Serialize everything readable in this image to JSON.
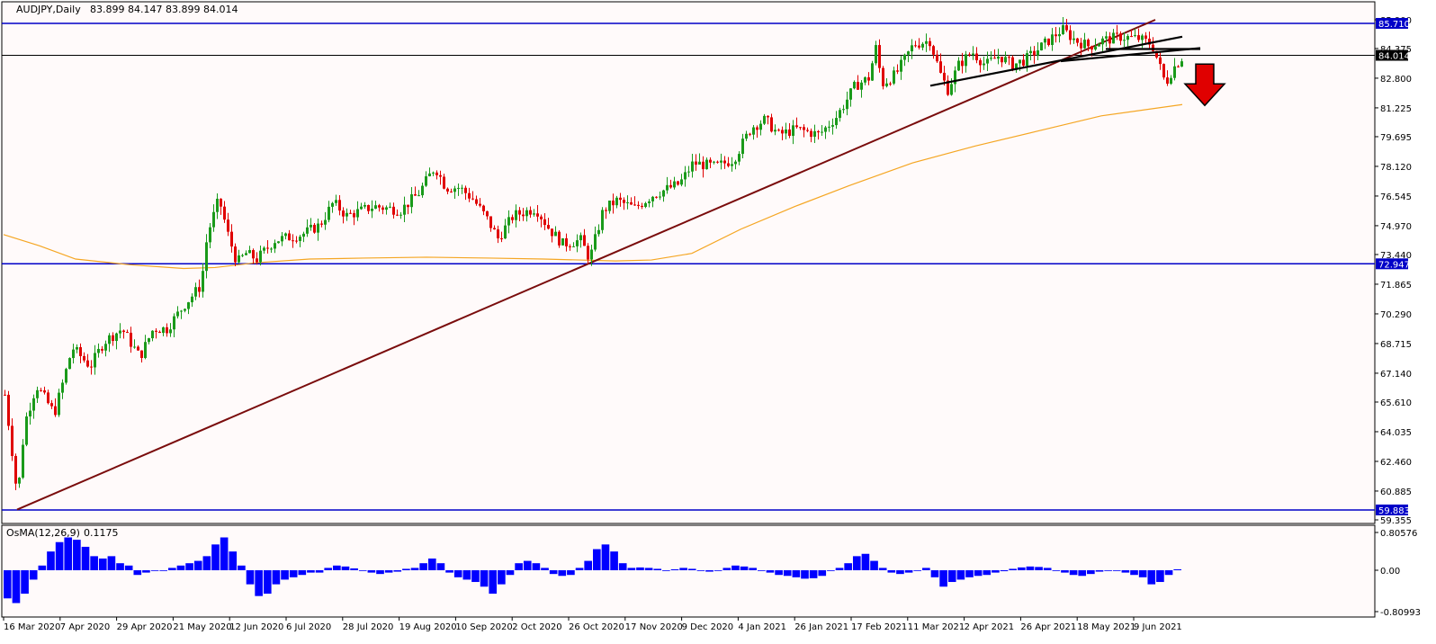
{
  "header": {
    "symbol_label": "AUDJPY,Daily",
    "ohlc": "83.899 84.147 83.899 84.014"
  },
  "osma": {
    "label": "OsMA(12,26,9)",
    "value": "0.1175",
    "axis_labels": [
      "0.80576",
      "0.00",
      "-0.80993"
    ]
  },
  "price_axis": {
    "labels": [
      "85.900",
      "84.375",
      "82.800",
      "81.225",
      "79.695",
      "78.120",
      "76.545",
      "74.970",
      "73.440",
      "71.865",
      "70.290",
      "68.715",
      "67.140",
      "65.610",
      "64.035",
      "62.460",
      "60.885",
      "59.355"
    ],
    "tags": [
      {
        "text": "85.710",
        "color": "#0000c8"
      },
      {
        "text": "84.014",
        "color": "#000000"
      },
      {
        "text": "72.947",
        "color": "#0000c8"
      },
      {
        "text": "59.883",
        "color": "#0000c8"
      }
    ]
  },
  "time_axis": {
    "labels": [
      "16 Mar 2020",
      "7 Apr 2020",
      "29 Apr 2020",
      "21 May 2020",
      "12 Jun 2020",
      "6 Jul 2020",
      "28 Jul 2020",
      "19 Aug 2020",
      "10 Sep 2020",
      "2 Oct 2020",
      "26 Oct 2020",
      "17 Nov 2020",
      "9 Dec 2020",
      "4 Jan 2021",
      "26 Jan 2021",
      "17 Feb 2021",
      "11 Mar 2021",
      "2 Apr 2021",
      "26 Apr 2021",
      "18 May 2021",
      "9 Jun 2021"
    ]
  },
  "colors": {
    "bull": "#1a9a1a",
    "bear": "#e00000",
    "ma": "#f5a623",
    "hline": "#0000c8",
    "trend": "#7a0c0c",
    "osma": "#0000ff",
    "arrow": "#e00000"
  },
  "chart_data": {
    "type": "candlestick",
    "title": "AUDJPY,Daily",
    "ylim": [
      59.355,
      85.9
    ],
    "horizontal_levels": [
      85.71,
      84.014,
      72.947,
      59.883
    ],
    "moving_average": {
      "name": "",
      "points": [
        [
          0,
          74.5
        ],
        [
          40,
          73.9
        ],
        [
          80,
          73.2
        ],
        [
          140,
          72.9
        ],
        [
          200,
          72.7
        ],
        [
          235,
          72.75
        ],
        [
          280,
          73.0
        ],
        [
          340,
          73.2
        ],
        [
          400,
          73.25
        ],
        [
          470,
          73.3
        ],
        [
          540,
          73.25
        ],
        [
          600,
          73.2
        ],
        [
          680,
          73.1
        ],
        [
          720,
          73.15
        ],
        [
          765,
          73.5
        ],
        [
          820,
          74.8
        ],
        [
          880,
          76.0
        ],
        [
          940,
          77.1
        ],
        [
          1010,
          78.3
        ],
        [
          1080,
          79.2
        ],
        [
          1150,
          80.0
        ],
        [
          1220,
          80.8
        ],
        [
          1310,
          81.4
        ]
      ]
    },
    "trendline": {
      "from": [
        15,
        59.9
      ],
      "to": [
        1280,
        85.9
      ]
    },
    "pattern_lines": [
      {
        "from": [
          1030,
          82.4
        ],
        "to": [
          1310,
          85.0
        ]
      },
      {
        "from": [
          1175,
          83.7
        ],
        "to": [
          1330,
          84.4
        ]
      },
      {
        "from": [
          1225,
          84.35
        ],
        "to": [
          1330,
          84.35
        ]
      }
    ],
    "arrow": {
      "direction": "down",
      "at": [
        1335,
        82.5
      ]
    },
    "price_points": [
      [
        0,
        66.0
      ],
      [
        8,
        63.0
      ],
      [
        14,
        60.5
      ],
      [
        22,
        64.5
      ],
      [
        35,
        66.5
      ],
      [
        55,
        65.0
      ],
      [
        75,
        68.5
      ],
      [
        95,
        67.5
      ],
      [
        110,
        68.8
      ],
      [
        130,
        69.5
      ],
      [
        150,
        68.0
      ],
      [
        165,
        69.5
      ],
      [
        180,
        69.5
      ],
      [
        200,
        70.8
      ],
      [
        218,
        71.8
      ],
      [
        225,
        74.5
      ],
      [
        238,
        76.4
      ],
      [
        248,
        74.5
      ],
      [
        258,
        73.0
      ],
      [
        268,
        73.5
      ],
      [
        280,
        73.2
      ],
      [
        300,
        74.2
      ],
      [
        330,
        74.5
      ],
      [
        350,
        75.0
      ],
      [
        365,
        76.2
      ],
      [
        380,
        75.5
      ],
      [
        410,
        76.0
      ],
      [
        440,
        75.8
      ],
      [
        460,
        76.7
      ],
      [
        478,
        78.1
      ],
      [
        490,
        77.0
      ],
      [
        505,
        77.0
      ],
      [
        520,
        76.4
      ],
      [
        535,
        75.4
      ],
      [
        548,
        74.3
      ],
      [
        565,
        75.5
      ],
      [
        590,
        75.9
      ],
      [
        605,
        74.8
      ],
      [
        620,
        74.0
      ],
      [
        640,
        74.2
      ],
      [
        650,
        73.2
      ],
      [
        665,
        75.8
      ],
      [
        680,
        76.3
      ],
      [
        700,
        75.9
      ],
      [
        720,
        76.6
      ],
      [
        750,
        77.2
      ],
      [
        765,
        78.3
      ],
      [
        790,
        78.1
      ],
      [
        810,
        78.5
      ],
      [
        830,
        80.2
      ],
      [
        845,
        80.6
      ],
      [
        860,
        79.8
      ],
      [
        880,
        80.1
      ],
      [
        905,
        79.8
      ],
      [
        925,
        80.8
      ],
      [
        945,
        82.4
      ],
      [
        960,
        82.8
      ],
      [
        968,
        84.4
      ],
      [
        975,
        82.5
      ],
      [
        990,
        83.0
      ],
      [
        1010,
        84.6
      ],
      [
        1028,
        84.8
      ],
      [
        1040,
        83.0
      ],
      [
        1048,
        82.2
      ],
      [
        1060,
        83.5
      ],
      [
        1075,
        84.2
      ],
      [
        1090,
        83.5
      ],
      [
        1105,
        84.0
      ],
      [
        1120,
        83.5
      ],
      [
        1135,
        83.8
      ],
      [
        1150,
        84.4
      ],
      [
        1165,
        85.0
      ],
      [
        1175,
        85.4
      ],
      [
        1190,
        84.8
      ],
      [
        1205,
        84.5
      ],
      [
        1220,
        84.8
      ],
      [
        1240,
        85.0
      ],
      [
        1260,
        84.9
      ],
      [
        1275,
        84.6
      ],
      [
        1283,
        83.5
      ],
      [
        1290,
        82.5
      ],
      [
        1298,
        83.3
      ],
      [
        1310,
        84.0
      ]
    ],
    "osma_values": [
      -0.6,
      -0.7,
      -0.5,
      -0.2,
      0.1,
      0.4,
      0.6,
      0.7,
      0.65,
      0.5,
      0.3,
      0.25,
      0.3,
      0.15,
      0.1,
      -0.1,
      -0.05,
      0.0,
      0.0,
      0.05,
      0.1,
      0.15,
      0.2,
      0.3,
      0.55,
      0.7,
      0.4,
      0.1,
      -0.3,
      -0.55,
      -0.5,
      -0.3,
      -0.2,
      -0.15,
      -0.1,
      -0.05,
      -0.05,
      0.05,
      0.1,
      0.08,
      0.04,
      0.0,
      -0.05,
      -0.08,
      -0.05,
      -0.03,
      0.03,
      0.05,
      0.15,
      0.25,
      0.15,
      -0.05,
      -0.15,
      -0.2,
      -0.25,
      -0.35,
      -0.5,
      -0.3,
      -0.1,
      0.15,
      0.2,
      0.15,
      0.05,
      -0.08,
      -0.12,
      -0.1,
      0.05,
      0.2,
      0.45,
      0.55,
      0.4,
      0.15,
      0.05,
      0.06,
      0.05,
      0.03,
      0.0,
      0.02,
      0.05,
      0.03,
      0.0,
      -0.03,
      0.0,
      0.05,
      0.1,
      0.08,
      0.05,
      0.0,
      -0.05,
      -0.1,
      -0.12,
      -0.15,
      -0.18,
      -0.17,
      -0.12,
      0.0,
      0.05,
      0.15,
      0.3,
      0.35,
      0.2,
      0.05,
      -0.05,
      -0.08,
      -0.05,
      0.0,
      0.05,
      -0.15,
      -0.35,
      -0.25,
      -0.2,
      -0.15,
      -0.12,
      -0.1,
      -0.05,
      -0.02,
      0.03,
      0.06,
      0.08,
      0.07,
      0.05,
      0.0,
      -0.05,
      -0.1,
      -0.12,
      -0.08,
      -0.03,
      0.0,
      0.0,
      -0.05,
      -0.1,
      -0.15,
      -0.3,
      -0.25,
      -0.1,
      0.02
    ]
  }
}
